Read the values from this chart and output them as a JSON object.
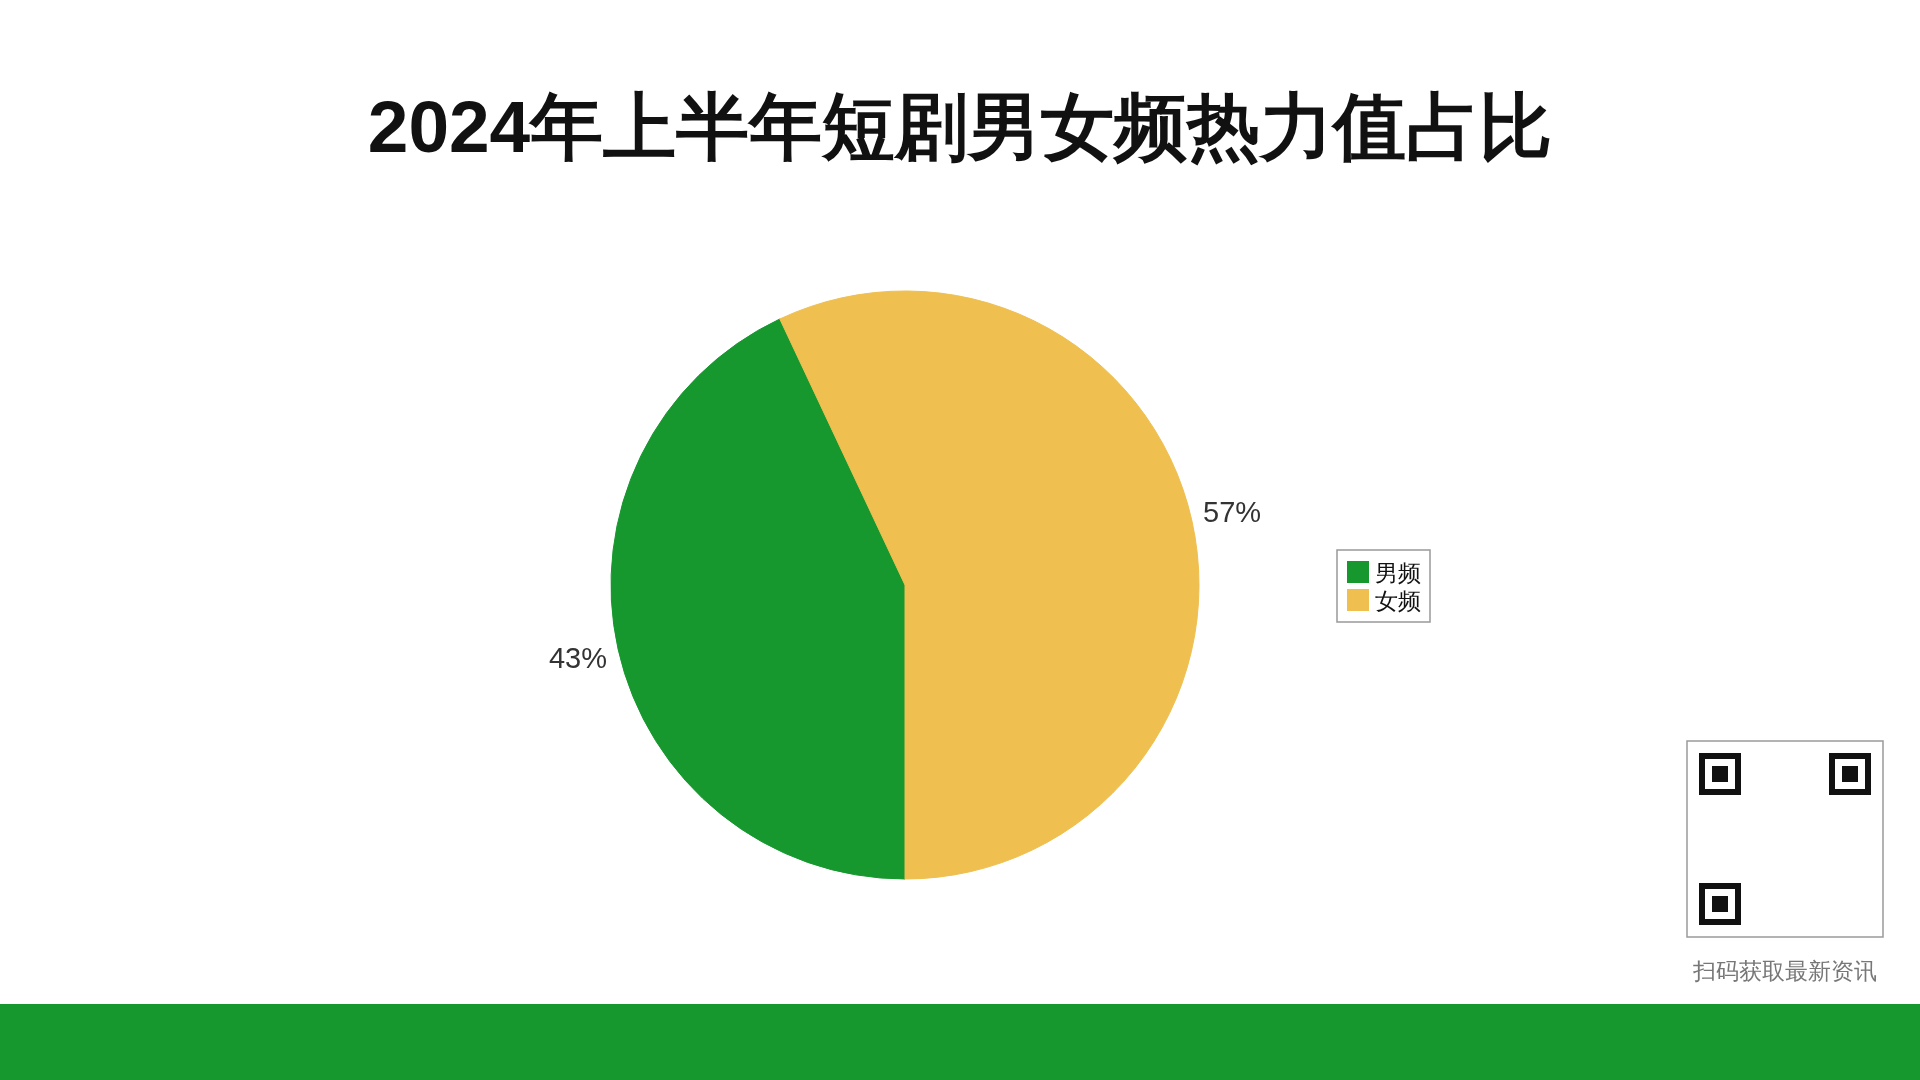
{
  "chart_data": {
    "type": "pie",
    "title": "2024年上半年短剧男女频热力值占比",
    "categories": [
      "男频",
      "女频"
    ],
    "values": [
      43,
      57
    ],
    "colors": [
      "#16982e",
      "#efbf50"
    ],
    "value_labels": [
      "43%",
      "57%"
    ],
    "legend": "right",
    "annotations": [
      "扫码获取最新资讯"
    ]
  }
}
